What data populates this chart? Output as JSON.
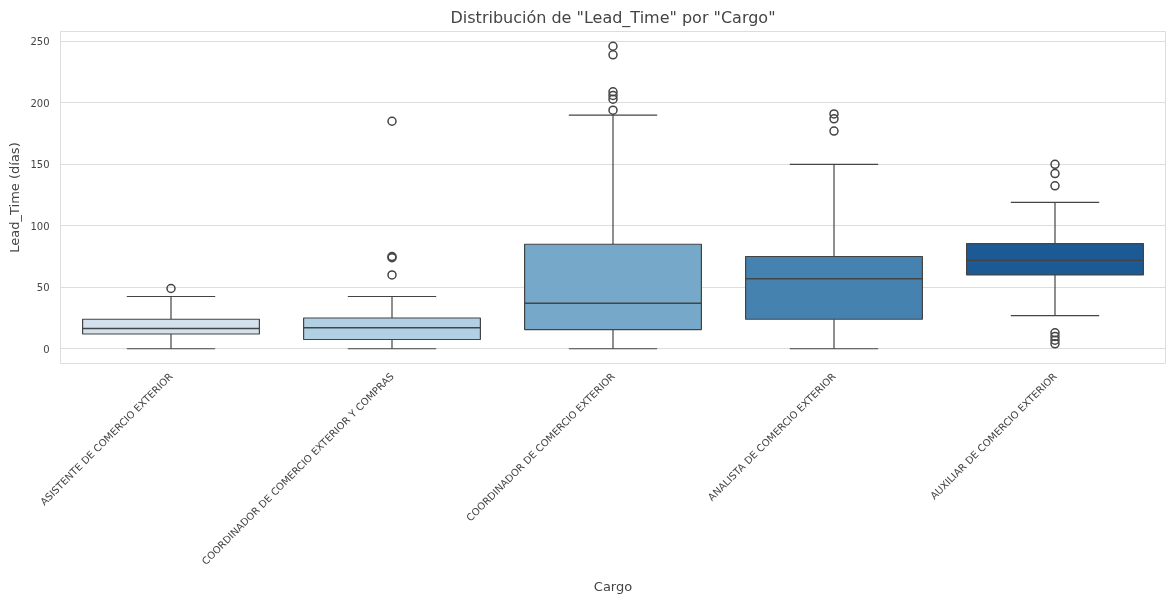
{
  "chart_data": {
    "type": "box",
    "title": "Distribución de \"Lead_Time\" por \"Cargo\"",
    "xlabel": "Cargo",
    "ylabel": "Lead_Time (días)",
    "categories": [
      "ASISTENTE DE COMERCIO EXTERIOR",
      "COORDINADOR DE COMERCIO EXTERIOR Y COMPRAS",
      "COORDINADOR DE COMERCIO EXTERIOR",
      "ANALISTA DE COMERCIO EXTERIOR",
      "AUXILIAR DE COMERCIO EXTERIOR"
    ],
    "colors": [
      "#d3e0ee",
      "#b2d0e4",
      "#76a9c9",
      "#4682b0",
      "#1c5a96"
    ],
    "boxes": [
      {
        "low": 0,
        "q1": 12,
        "median": 16.5,
        "q3": 24,
        "high": 42.5,
        "outliers": [
          49
        ]
      },
      {
        "low": 0,
        "q1": 7.5,
        "median": 17,
        "q3": 25,
        "high": 42.5,
        "outliers": [
          185,
          75,
          74,
          60
        ]
      },
      {
        "low": 0,
        "q1": 15.6,
        "median": 37,
        "q3": 85,
        "high": 190,
        "outliers": [
          246,
          239,
          209,
          206,
          203,
          194
        ]
      },
      {
        "low": 0,
        "q1": 24,
        "median": 57,
        "q3": 75,
        "high": 150,
        "outliers": [
          191,
          187,
          177
        ]
      },
      {
        "low": 27,
        "q1": 60,
        "median": 72,
        "q3": 85.5,
        "high": 119,
        "outliers": [
          150,
          142.5,
          132.5,
          13,
          10,
          7,
          4
        ]
      }
    ],
    "ylim": [
      -12,
      258
    ],
    "yticks": [
      0,
      50,
      100,
      150,
      200,
      250
    ],
    "grid": "y"
  }
}
